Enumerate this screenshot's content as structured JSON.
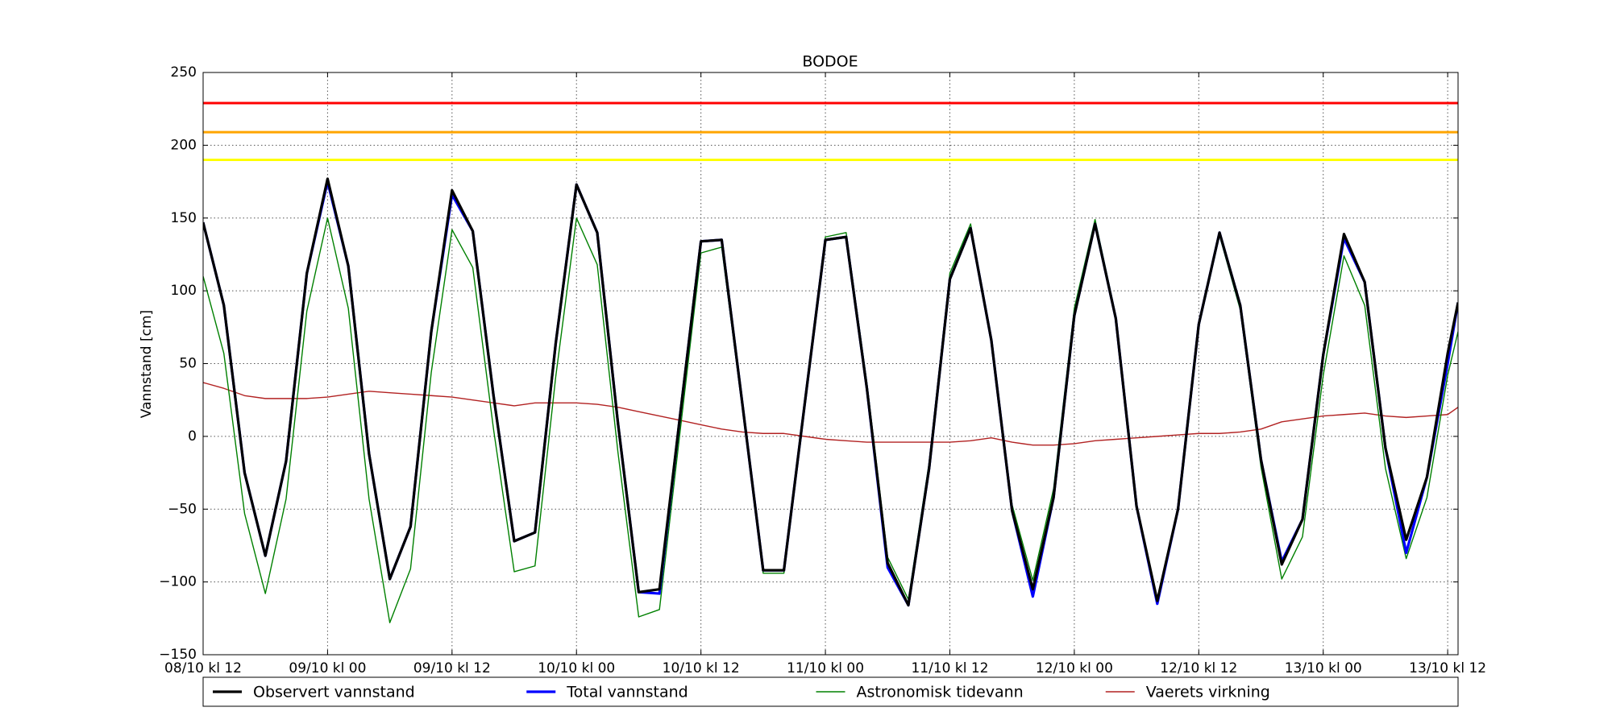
{
  "chart_data": {
    "type": "line",
    "title": "BODOE",
    "y_label": "Vannstand [cm]",
    "x": [
      0,
      2,
      4,
      6,
      8,
      10,
      12,
      14,
      16,
      18,
      20,
      22,
      24,
      26,
      28,
      30,
      32,
      34,
      36,
      38,
      40,
      42,
      44,
      46,
      48,
      50,
      52,
      54,
      56,
      58,
      60,
      62,
      64,
      66,
      68,
      70,
      72,
      74,
      76,
      78,
      80,
      82,
      84,
      86,
      88,
      90,
      92,
      94,
      96,
      98,
      100,
      102,
      104,
      106,
      108,
      110,
      112,
      114,
      116,
      118,
      120,
      121
    ],
    "xlim": [
      0,
      121
    ],
    "xticks": [
      {
        "value": 0,
        "label": "08/10 kl 12"
      },
      {
        "value": 12,
        "label": "09/10 kl 00"
      },
      {
        "value": 24,
        "label": "09/10 kl 12"
      },
      {
        "value": 36,
        "label": "10/10 kl 00"
      },
      {
        "value": 48,
        "label": "10/10 kl 12"
      },
      {
        "value": 60,
        "label": "11/10 kl 00"
      },
      {
        "value": 72,
        "label": "11/10 kl 12"
      },
      {
        "value": 84,
        "label": "12/10 kl 00"
      },
      {
        "value": 96,
        "label": "12/10 kl 12"
      },
      {
        "value": 108,
        "label": "13/10 kl 00"
      },
      {
        "value": 120,
        "label": "13/10 kl 12"
      }
    ],
    "ylim": [
      -150,
      250
    ],
    "yticks": [
      {
        "value": -150,
        "label": "−150"
      },
      {
        "value": -100,
        "label": "−100"
      },
      {
        "value": -50,
        "label": "−50"
      },
      0,
      50,
      100,
      150,
      200,
      250
    ],
    "grid": true,
    "reference_lines": [
      {
        "value": 229,
        "color": "#ff0000"
      },
      {
        "value": 209,
        "color": "#ffa500"
      },
      {
        "value": 190,
        "color": "#ffff00"
      }
    ],
    "series": [
      {
        "name": "Observert vannstand",
        "color": "#000000",
        "values": [
          147,
          90,
          -25,
          -82,
          -17,
          112,
          177,
          117,
          -12,
          -98,
          -62,
          72,
          169,
          141,
          28,
          -72,
          -66,
          64,
          173,
          140,
          9,
          -107,
          -105,
          15,
          134,
          135,
          22,
          -92,
          -92,
          22,
          135,
          137,
          33,
          -87,
          -116,
          -22,
          108,
          143,
          66,
          -51,
          -105,
          -42,
          83,
          146,
          81,
          -48,
          -113,
          -50,
          77,
          140,
          90,
          -16,
          -88,
          -57,
          56,
          139,
          106,
          -8,
          -71,
          -28,
          57,
          92
        ]
      },
      {
        "name": "Total vannstand",
        "color": "#0000ff",
        "values": [
          147,
          90,
          -25,
          -82,
          -17,
          112,
          175,
          117,
          -12,
          -98,
          -62,
          72,
          166,
          141,
          28,
          -72,
          -66,
          64,
          173,
          140,
          9,
          -107,
          -108,
          15,
          134,
          135,
          22,
          -92,
          -92,
          22,
          135,
          137,
          33,
          -90,
          -116,
          -22,
          108,
          143,
          66,
          -51,
          -110,
          -42,
          83,
          146,
          81,
          -48,
          -115,
          -50,
          77,
          140,
          90,
          -16,
          -86,
          -57,
          56,
          136,
          106,
          -8,
          -80,
          -28,
          50,
          92
        ]
      },
      {
        "name": "Astronomisk tidevann",
        "color": "#008000",
        "values": [
          110,
          57,
          -53,
          -108,
          -43,
          86,
          150,
          88,
          -43,
          -128,
          -91,
          44,
          142,
          116,
          5,
          -93,
          -89,
          41,
          150,
          118,
          -11,
          -124,
          -119,
          4,
          126,
          130,
          19,
          -94,
          -94,
          22,
          137,
          140,
          37,
          -83,
          -112,
          -18,
          112,
          146,
          67,
          -47,
          -99,
          -36,
          88,
          149,
          83,
          -47,
          -113,
          -51,
          75,
          138,
          87,
          -21,
          -98,
          -69,
          42,
          124,
          90,
          -22,
          -84,
          -42,
          42,
          72
        ]
      },
      {
        "name": "Vaerets virkning",
        "color": "#b22222",
        "values": [
          37,
          33,
          28,
          26,
          26,
          26,
          27,
          29,
          31,
          30,
          29,
          28,
          27,
          25,
          23,
          21,
          23,
          23,
          23,
          22,
          20,
          17,
          14,
          11,
          8,
          5,
          3,
          2,
          2,
          0,
          -2,
          -3,
          -4,
          -4,
          -4,
          -4,
          -4,
          -3,
          -1,
          -4,
          -6,
          -6,
          -5,
          -3,
          -2,
          -1,
          0,
          1,
          2,
          2,
          3,
          5,
          10,
          12,
          14,
          15,
          16,
          14,
          13,
          14,
          15,
          20
        ]
      }
    ],
    "legend": "bottom"
  }
}
